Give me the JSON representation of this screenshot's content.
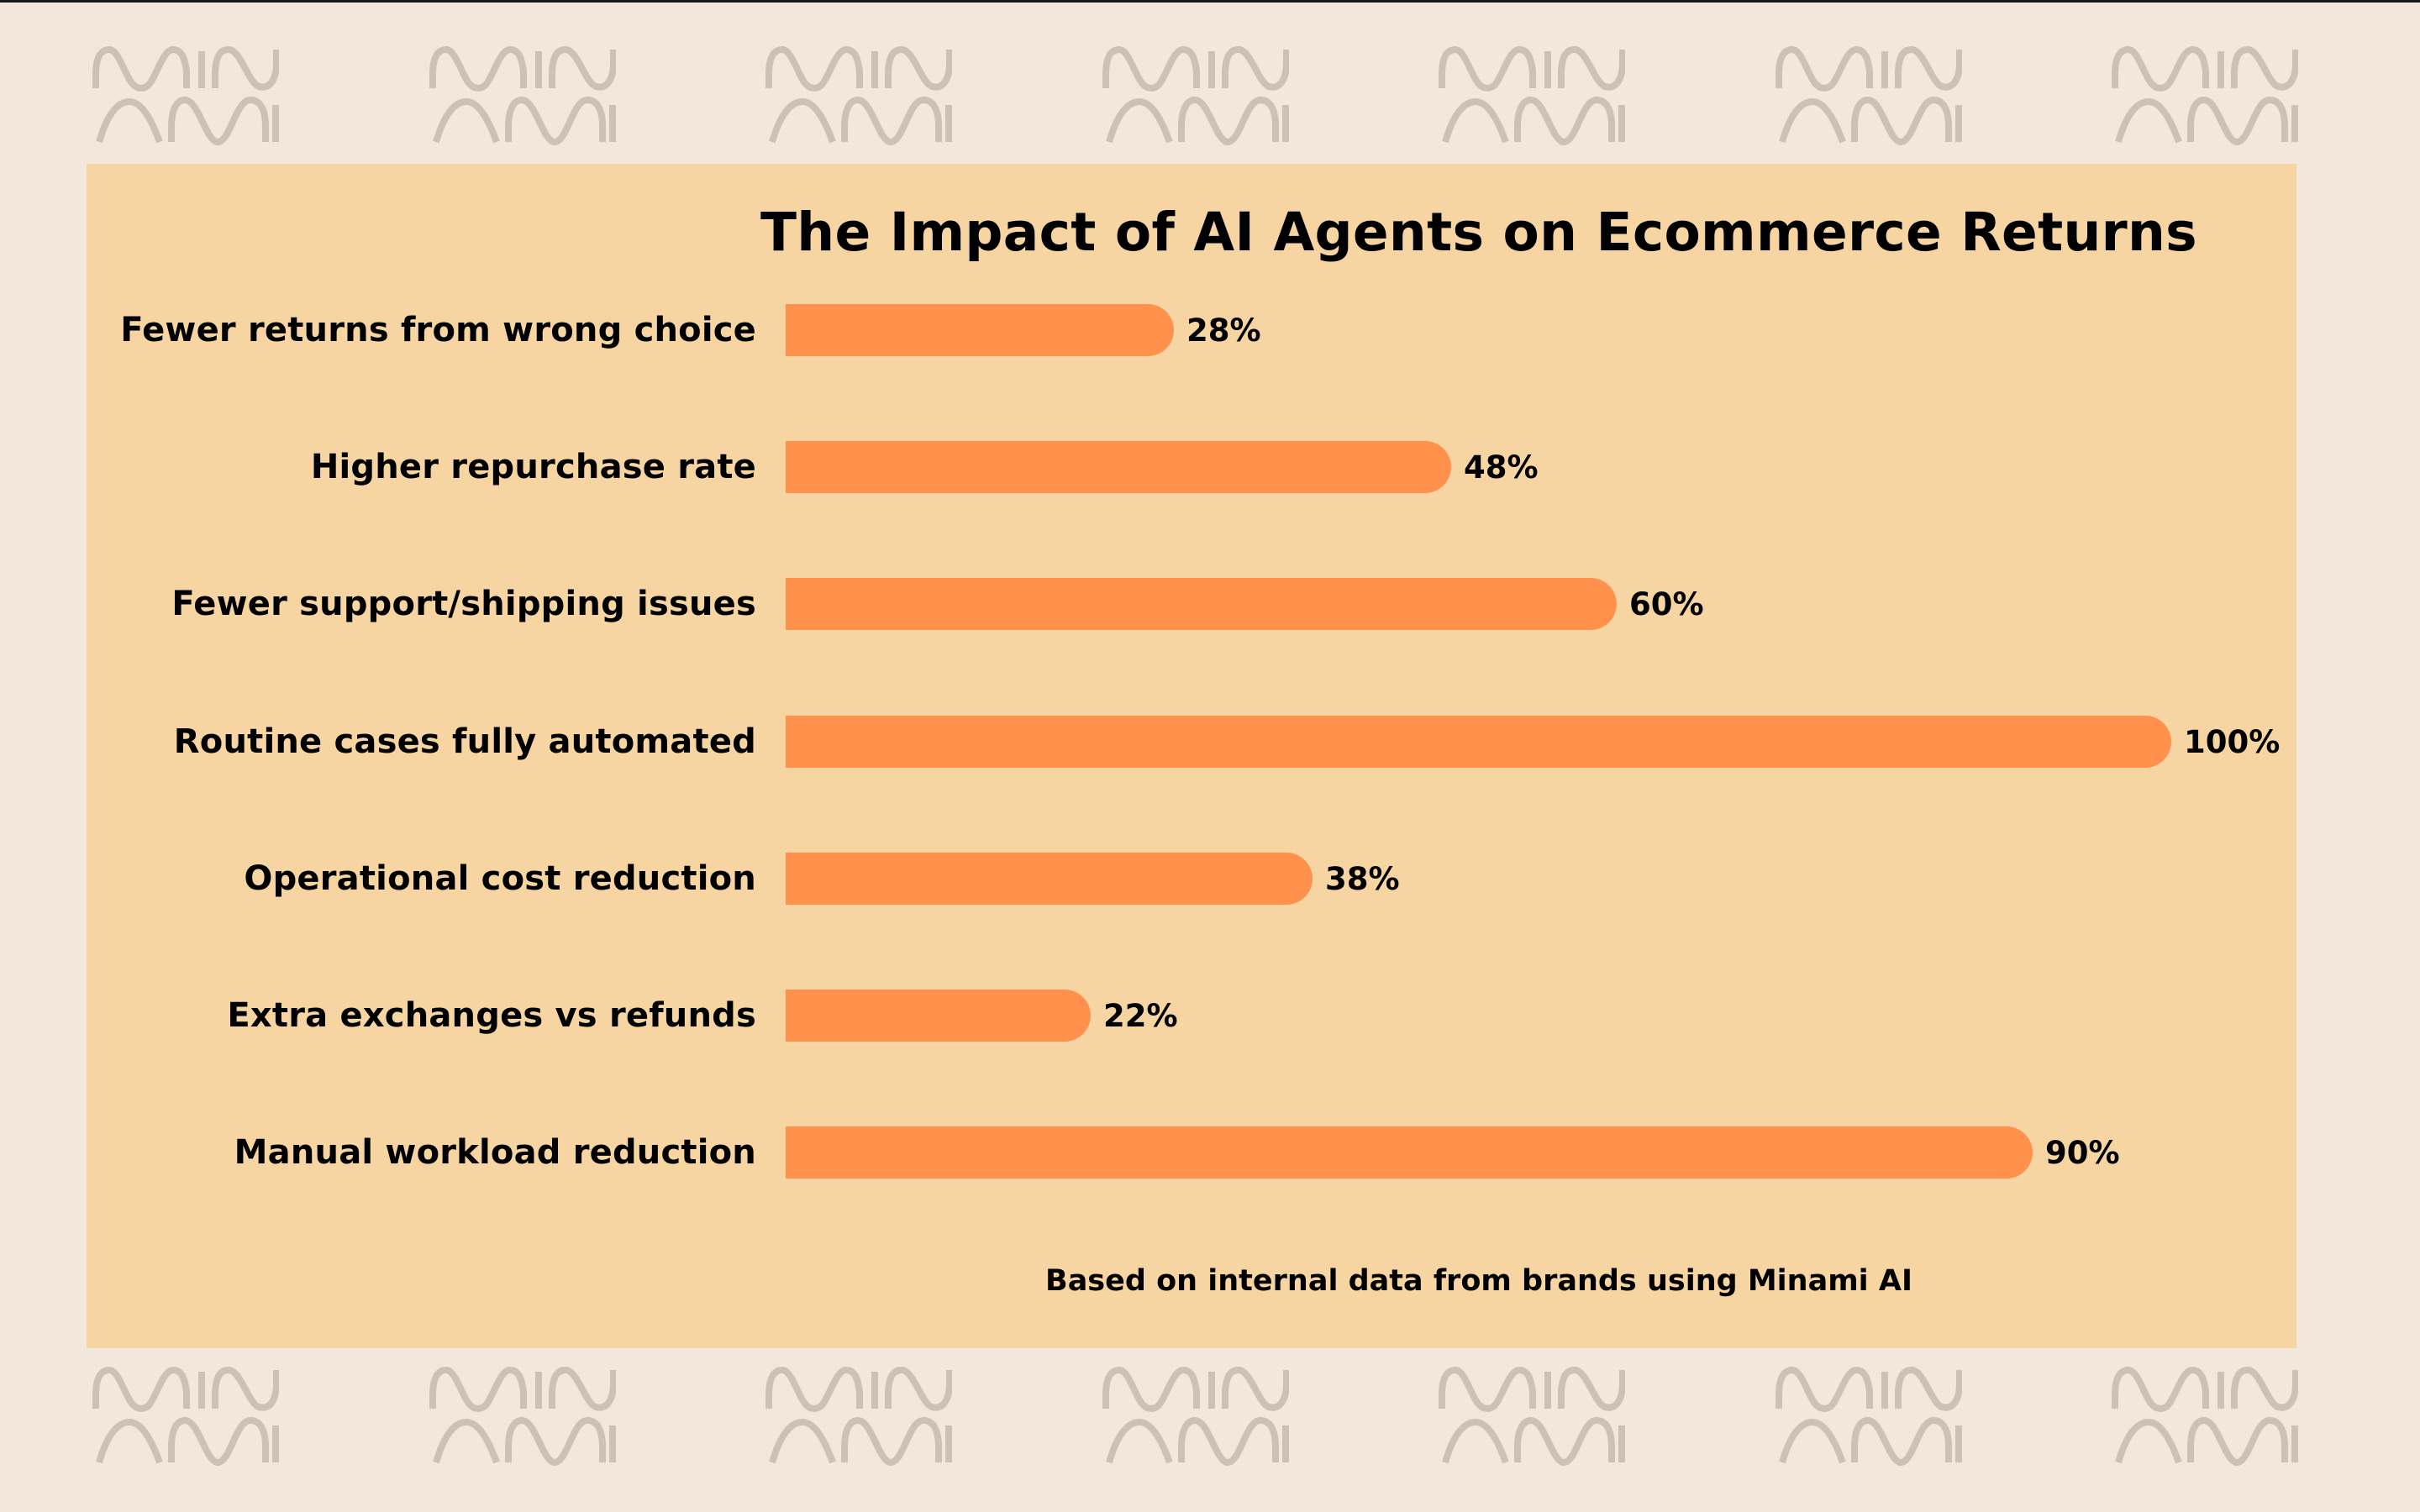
{
  "colors": {
    "page_background": "#F1E8DB",
    "panel_background": "#F7D5A3",
    "bar": "#FF914D",
    "text": "#000000",
    "logo": "#CBC1B4"
  },
  "watermark": {
    "text": "MINAMI",
    "top_row_count": 7,
    "bottom_row_count": 7
  },
  "chart_data": {
    "type": "bar",
    "orientation": "horizontal",
    "title": "The Impact of AI Agents on Ecommerce Returns",
    "categories": [
      "Fewer returns from wrong choice",
      "Higher repurchase rate",
      "Fewer support/shipping issues",
      "Routine cases fully automated",
      "Operational cost reduction",
      "Extra exchanges vs refunds",
      "Manual workload reduction"
    ],
    "values": [
      28,
      48,
      60,
      100,
      38,
      22,
      90
    ],
    "value_labels": [
      "28%",
      "48%",
      "60%",
      "100%",
      "38%",
      "22%",
      "90%"
    ],
    "unit": "%",
    "xlabel": "",
    "ylabel": "",
    "xlim": [
      0,
      100
    ],
    "grid": false,
    "legend": null,
    "annotation": "Based on internal data from brands using Minami AI"
  },
  "footnote": "Based on internal data from brands using Minami AI"
}
